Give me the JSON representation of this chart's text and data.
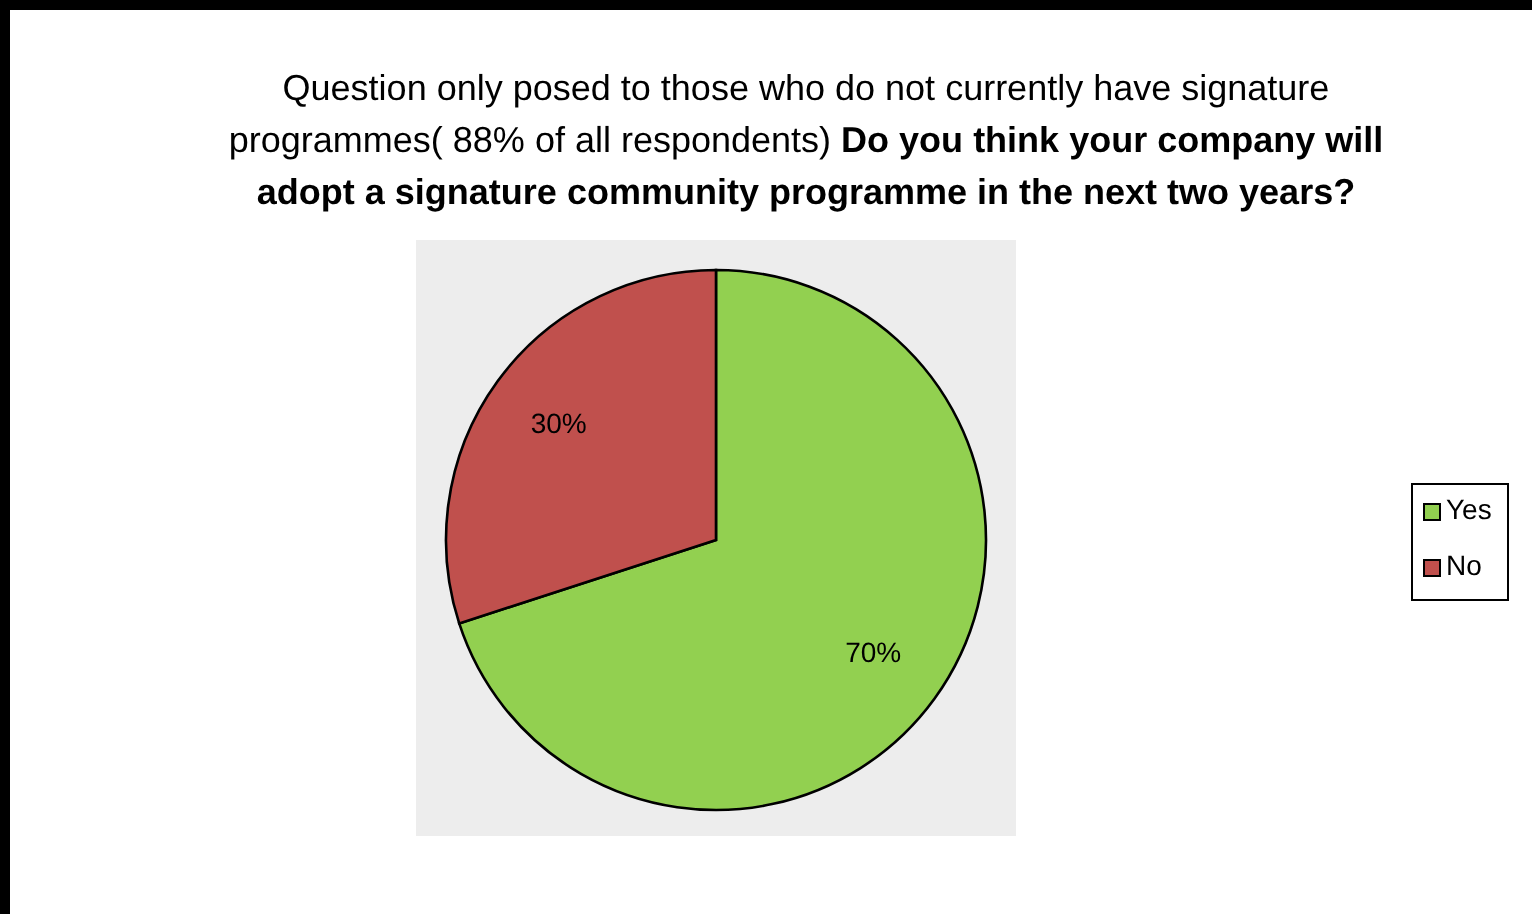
{
  "chart_data": {
    "type": "pie",
    "title": "Question only posed to those who do not currently have signature programmes( 88% of all respondents)",
    "subtitle": "Do you think your company will adopt a signature community programme in the next two years?",
    "categories": [
      "Yes",
      "No"
    ],
    "values": [
      70,
      30
    ],
    "colors": [
      "#92d050",
      "#c0504d"
    ],
    "value_labels": [
      "70%",
      "30%"
    ],
    "legend": "right"
  }
}
